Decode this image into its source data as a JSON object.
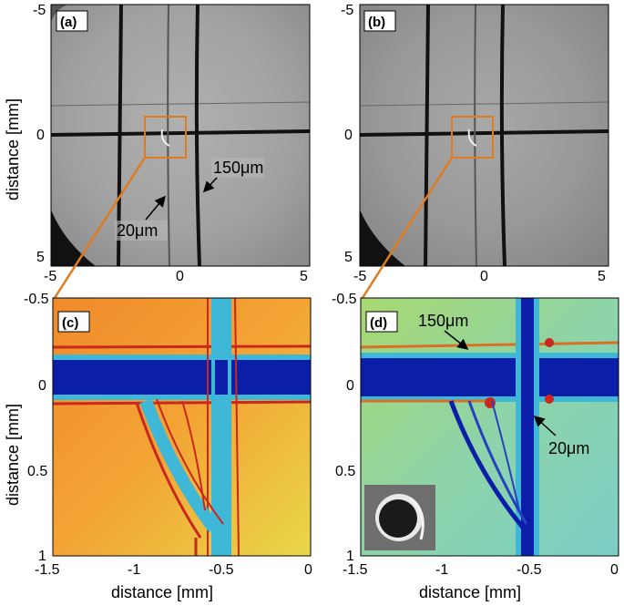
{
  "figure": {
    "panels": [
      {
        "id": "a",
        "label": "(a)",
        "type": "microscope-image",
        "x_ticks": [
          "-5",
          "0",
          "5"
        ],
        "y_ticks": [
          "-5",
          "0",
          "5"
        ],
        "ylabel": "distance [mm]",
        "annotations": [
          "150μm",
          "20μm"
        ]
      },
      {
        "id": "b",
        "label": "(b)",
        "type": "microscope-image",
        "x_ticks": [
          "-5",
          "0",
          "5"
        ],
        "y_ticks": [
          "-5",
          "0",
          "5"
        ]
      },
      {
        "id": "c",
        "label": "(c)",
        "type": "heatmap",
        "x_ticks": [
          "-1.5",
          "-1",
          "-0.5",
          "0"
        ],
        "y_ticks": [
          "-0.5",
          "0",
          "0.5",
          "1"
        ],
        "xlabel": "distance [mm]",
        "ylabel": "distance [mm]"
      },
      {
        "id": "d",
        "label": "(d)",
        "type": "heatmap",
        "x_ticks": [
          "-1.5",
          "-1",
          "-0.5",
          "0"
        ],
        "y_ticks": [
          "-0.5",
          "0",
          "0.5",
          "1"
        ],
        "xlabel": "distance [mm]",
        "annotations": [
          "150μm",
          "20μm"
        ]
      }
    ],
    "colors": {
      "zoom_box": "#e07b20",
      "image_bg": "#a9a9a9",
      "wire": "#1a1a1a",
      "heat_warm": "#f2a032",
      "heat_cool": "#8fd3b0",
      "heat_blue": "#0b1ea8",
      "heat_cyan": "#3fb8d8",
      "heat_red": "#c8281e"
    }
  }
}
